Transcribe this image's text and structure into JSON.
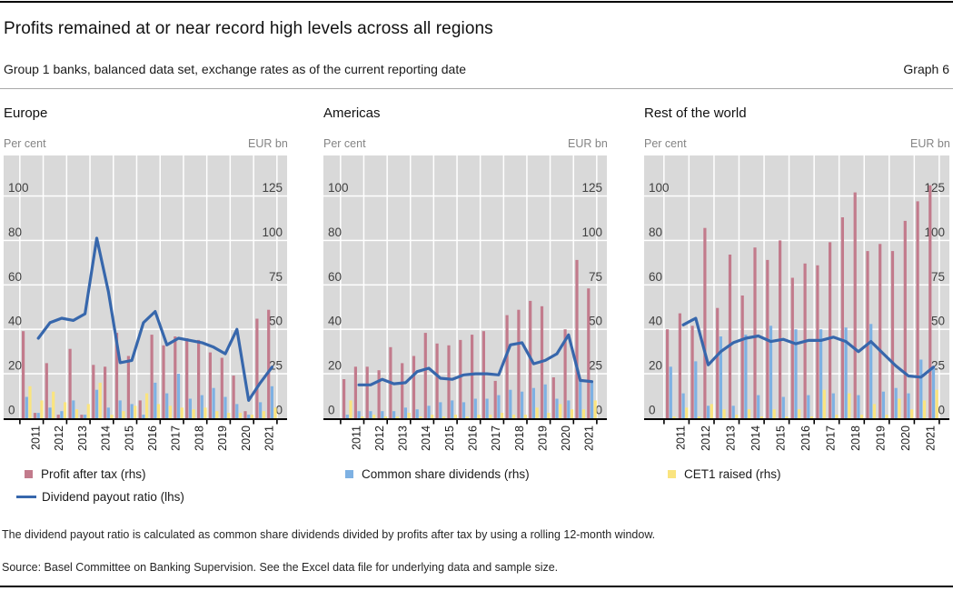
{
  "header": {
    "title": "Profits remained at or near record high levels across all regions",
    "subtitle": "Group 1 banks, balanced data set, exchange rates as of the current reporting date",
    "graph_label": "Graph 6"
  },
  "colors": {
    "profit": "#c27b8c",
    "dividends": "#7eb1e3",
    "cet1": "#fae47f",
    "line": "#3767ac",
    "plot_bg": "#d9d9d9",
    "grid": "#ffffff",
    "axis": "#1a1a1a",
    "tick_label": "#404040"
  },
  "axes": {
    "left_title": "Per cent",
    "right_title": "EUR bn",
    "left_ticks": [
      0,
      20,
      40,
      60,
      80,
      100
    ],
    "right_ticks": [
      0,
      25,
      50,
      75,
      100,
      125
    ],
    "left_axis_range": [
      0,
      118
    ],
    "right_axis_range": [
      0,
      147.5
    ]
  },
  "years": [
    "2011",
    "2012",
    "2013",
    "2014",
    "2015",
    "2016",
    "2017",
    "2018",
    "2019",
    "2020",
    "2021"
  ],
  "periods_per_year": 2,
  "chart_data": [
    {
      "type": "bar+line",
      "title": "Europe",
      "bar_unit": "EUR bn (rhs)",
      "line_unit": "Per cent (lhs)",
      "series": [
        {
          "name": "Profit after tax (rhs)",
          "key": "profit",
          "values": [
            49,
            3,
            31,
            2,
            39,
            2,
            30,
            29,
            48,
            35,
            10,
            47,
            41,
            46,
            45,
            44,
            37,
            34,
            24,
            4,
            56,
            61
          ]
        },
        {
          "name": "Common share dividends (rhs)",
          "key": "dividends",
          "values": [
            12,
            3,
            6,
            4,
            10,
            2,
            16,
            6,
            10,
            8,
            2,
            20,
            14,
            25,
            11,
            13,
            17,
            12,
            8,
            2,
            9,
            18
          ]
        },
        {
          "name": "CET1 raised (rhs)",
          "key": "cet1",
          "values": [
            18,
            10,
            15,
            9,
            5,
            8,
            20,
            2,
            4,
            7,
            14,
            8,
            7,
            6,
            5,
            6,
            4,
            3,
            3,
            2,
            4,
            6
          ]
        },
        {
          "name": "Dividend payout ratio (lhs)",
          "key": "line",
          "values": [
            null,
            36,
            43,
            45,
            44,
            47,
            81,
            57,
            25,
            26,
            43,
            48,
            33,
            36,
            35,
            34,
            32,
            29,
            40,
            8,
            16,
            23
          ]
        }
      ]
    },
    {
      "type": "bar+line",
      "title": "Americas",
      "bar_unit": "EUR bn (rhs)",
      "line_unit": "Per cent (lhs)",
      "series": [
        {
          "name": "Profit after tax (rhs)",
          "key": "profit",
          "values": [
            22,
            29,
            29,
            27,
            40,
            31,
            35,
            48,
            42,
            41,
            44,
            47,
            49,
            21,
            58,
            61,
            66,
            63,
            23,
            50,
            89,
            73
          ]
        },
        {
          "name": "Common share dividends (rhs)",
          "key": "dividends",
          "values": [
            2,
            4,
            4,
            4,
            4,
            6,
            5,
            7,
            9,
            10,
            9,
            11,
            11,
            13,
            16,
            15,
            17,
            19,
            11,
            10,
            21,
            20
          ]
        },
        {
          "name": "CET1 raised (rhs)",
          "key": "cet1",
          "values": [
            10,
            1,
            2,
            1,
            1,
            3,
            1,
            2,
            1,
            2,
            1,
            2,
            2,
            3,
            2,
            2,
            6,
            3,
            8,
            5,
            5,
            10
          ]
        },
        {
          "name": "Dividend payout ratio (lhs)",
          "key": "line",
          "values": [
            null,
            15,
            15,
            17.5,
            15.5,
            16,
            21,
            22.5,
            18,
            17.5,
            19.5,
            20,
            20,
            19.5,
            33,
            34,
            24.5,
            26,
            29,
            37.5,
            17,
            16.5
          ]
        }
      ]
    },
    {
      "type": "bar+line",
      "title": "Rest of the world",
      "bar_unit": "EUR bn (rhs)",
      "line_unit": "Per cent (lhs)",
      "series": [
        {
          "name": "Profit after tax (rhs)",
          "key": "profit",
          "values": [
            50,
            59,
            52,
            107,
            62,
            92,
            69,
            96,
            89,
            100,
            79,
            87,
            86,
            99,
            113,
            127,
            94,
            98,
            94,
            111,
            122,
            131
          ]
        },
        {
          "name": "Common share dividends (rhs)",
          "key": "dividends",
          "values": [
            29,
            14,
            32,
            7,
            46,
            7,
            47,
            13,
            52,
            12,
            50,
            13,
            50,
            14,
            51,
            13,
            53,
            15,
            17,
            14,
            33,
            29
          ]
        },
        {
          "name": "CET1 raised (rhs)",
          "key": "cet1",
          "values": [
            1,
            6,
            1,
            8,
            5,
            2,
            5,
            1,
            5,
            1,
            5,
            1,
            16,
            2,
            14,
            2,
            8,
            2,
            11,
            5,
            10,
            16
          ]
        },
        {
          "name": "Dividend payout ratio (lhs)",
          "key": "line",
          "values": [
            null,
            42,
            45,
            24,
            30,
            34,
            36,
            37,
            34.5,
            35.5,
            33.5,
            35,
            35,
            36.5,
            34.5,
            30,
            34.5,
            29,
            23.5,
            19,
            18.5,
            23
          ]
        }
      ]
    }
  ],
  "legend": {
    "col1": [
      {
        "label": "Profit after tax (rhs)",
        "swatch": "profit",
        "marker": "square"
      },
      {
        "label": "Dividend payout ratio (lhs)",
        "swatch": "line",
        "marker": "line"
      }
    ],
    "col2": [
      {
        "label": "Common share dividends (rhs)",
        "swatch": "dividends",
        "marker": "square"
      }
    ],
    "col3": [
      {
        "label": "CET1 raised (rhs)",
        "swatch": "cet1",
        "marker": "square"
      }
    ]
  },
  "footnote": "The dividend payout ratio is calculated as common share dividends divided by profits after tax by using a rolling 12-month window.",
  "source": "Source: Basel Committee on Banking Supervision. See the Excel data file for underlying data and sample size."
}
